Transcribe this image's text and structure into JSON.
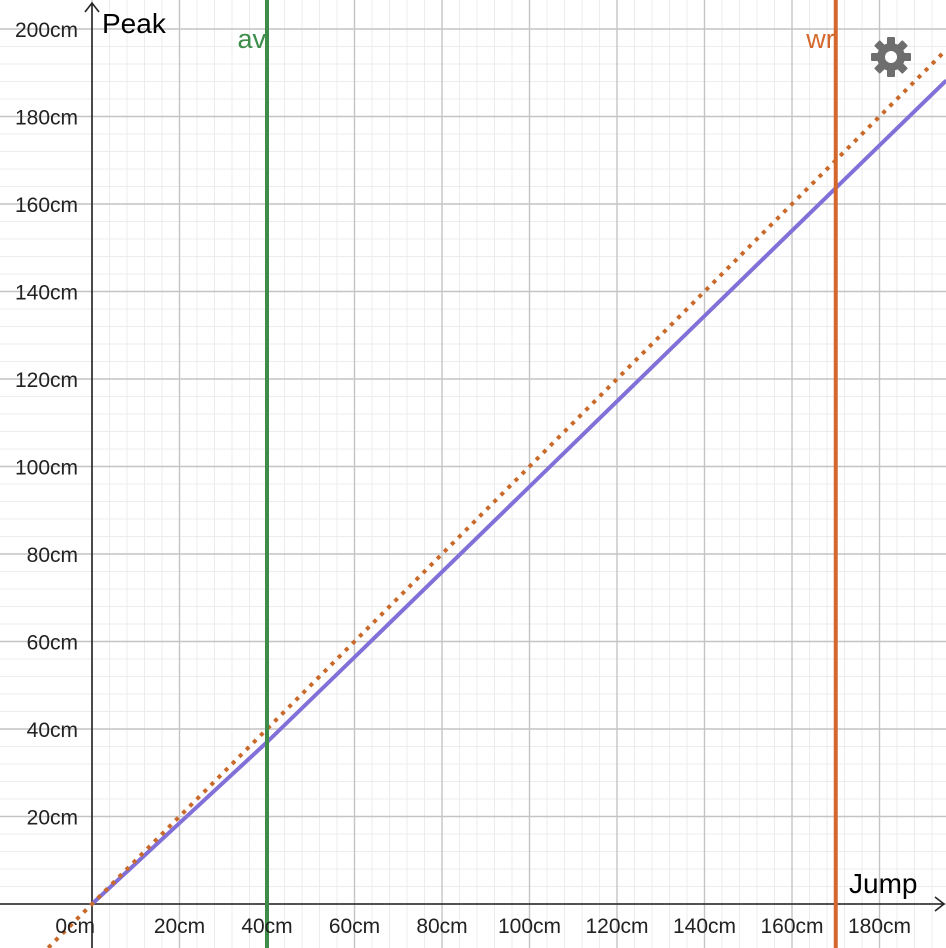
{
  "chart_data": {
    "type": "line",
    "xlabel": "Jump",
    "ylabel": "Peak",
    "unit": "cm",
    "xlim": [
      0,
      195
    ],
    "ylim": [
      0,
      200
    ],
    "grid": true,
    "x_ticks": [
      "0cm",
      "20cm",
      "40cm",
      "60cm",
      "80cm",
      "100cm",
      "120cm",
      "140cm",
      "160cm",
      "180cm"
    ],
    "y_ticks": [
      "20cm",
      "40cm",
      "60cm",
      "80cm",
      "100cm",
      "120cm",
      "140cm",
      "160cm",
      "180cm",
      "200cm"
    ],
    "series": [
      {
        "style": "solid",
        "color": "#8070d8",
        "x": [
          0,
          20,
          40,
          60,
          80,
          100,
          120,
          140,
          160,
          180,
          195
        ],
        "y": [
          0,
          18.5,
          37,
          56.4,
          75.9,
          95.4,
          114.9,
          134.4,
          153.9,
          173.4,
          188
        ]
      },
      {
        "style": "dotted",
        "color": "#c96a2b",
        "x": [
          -10,
          0,
          20,
          40,
          60,
          80,
          100,
          120,
          140,
          160,
          180,
          195
        ],
        "y": [
          -10,
          0,
          20,
          40,
          60,
          80,
          100,
          120,
          140,
          160,
          180,
          195
        ]
      }
    ],
    "vertical_lines": [
      {
        "label": "av",
        "x": 40,
        "color": "#3d8c4a"
      },
      {
        "label": "wr",
        "x": 170,
        "color": "#d4672b"
      }
    ]
  },
  "icons": {
    "settings": "gear-icon"
  }
}
